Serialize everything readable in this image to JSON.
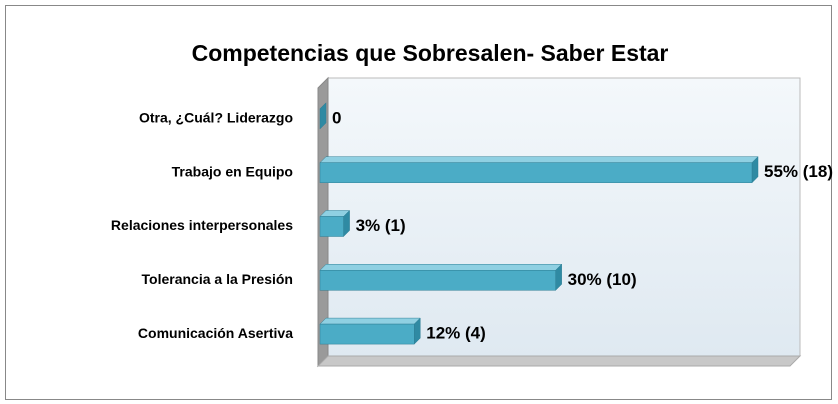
{
  "chart_data": {
    "type": "bar",
    "orientation": "horizontal",
    "title": "Competencias que Sobresalen- Saber Estar",
    "categories": [
      "Otra, ¿Cuál? Liderazgo",
      "Trabajo en Equipo",
      "Relaciones interpersonales",
      "Tolerancia a la Presión",
      "Comunicación Asertiva"
    ],
    "values": [
      0,
      55,
      3,
      30,
      12
    ],
    "value_labels": [
      "0",
      "55% (18)",
      "3% (1)",
      "30% (10)",
      "12% (4)"
    ],
    "color": "#4bacc6"
  }
}
